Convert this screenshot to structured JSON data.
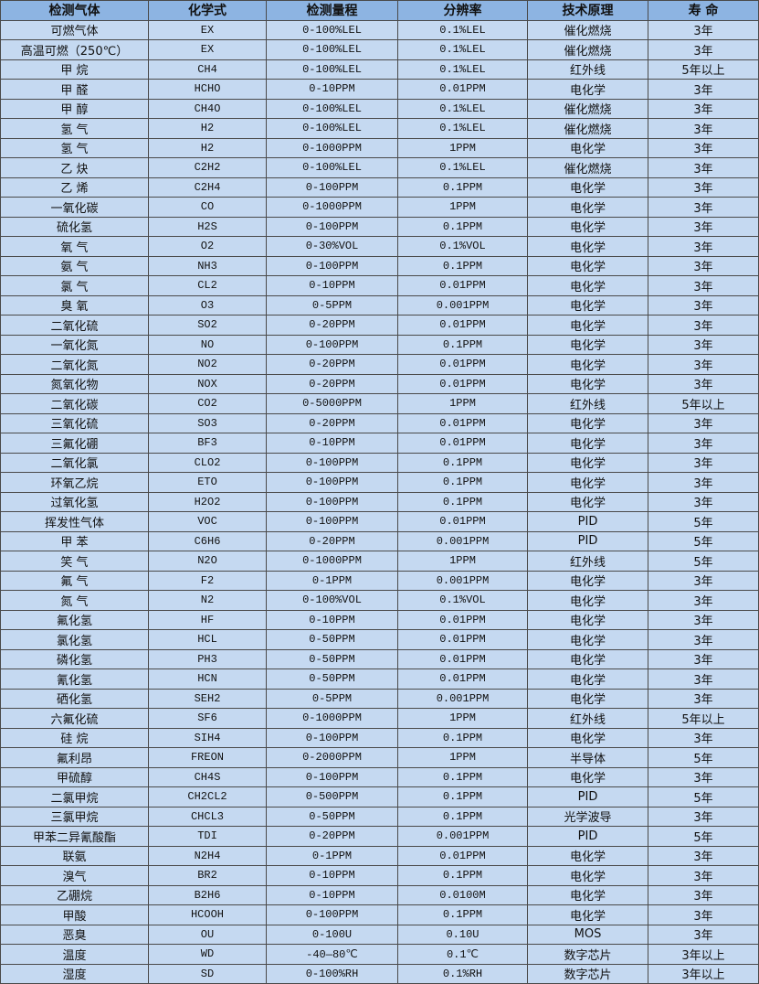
{
  "table": {
    "headers": [
      "检测气体",
      "化学式",
      "检测量程",
      "分辨率",
      "技术原理",
      "寿 命"
    ],
    "rows": [
      [
        "可燃气体",
        "EX",
        "0-100%LEL",
        "0.1%LEL",
        "催化燃烧",
        "3年"
      ],
      [
        "高温可燃（250℃）",
        "EX",
        "0-100%LEL",
        "0.1%LEL",
        "催化燃烧",
        "3年"
      ],
      [
        "甲 烷",
        "CH4",
        "0-100%LEL",
        "0.1%LEL",
        "红外线",
        "5年以上"
      ],
      [
        "甲 醛",
        "HCHO",
        "0-10PPM",
        "0.01PPM",
        "电化学",
        "3年"
      ],
      [
        "甲 醇",
        "CH4O",
        "0-100%LEL",
        "0.1%LEL",
        "催化燃烧",
        "3年"
      ],
      [
        "氢 气",
        "H2",
        "0-100%LEL",
        "0.1%LEL",
        "催化燃烧",
        "3年"
      ],
      [
        "氢 气",
        "H2",
        "0-1000PPM",
        "1PPM",
        "电化学",
        "3年"
      ],
      [
        "乙 炔",
        "C2H2",
        "0-100%LEL",
        "0.1%LEL",
        "催化燃烧",
        "3年"
      ],
      [
        "乙 烯",
        "C2H4",
        "0-100PPM",
        "0.1PPM",
        "电化学",
        "3年"
      ],
      [
        "一氧化碳",
        "CO",
        "0-1000PPM",
        "1PPM",
        "电化学",
        "3年"
      ],
      [
        "硫化氢",
        "H2S",
        "0-100PPM",
        "0.1PPM",
        "电化学",
        "3年"
      ],
      [
        "氧 气",
        "O2",
        "0-30%VOL",
        "0.1%VOL",
        "电化学",
        "3年"
      ],
      [
        "氨 气",
        "NH3",
        "0-100PPM",
        "0.1PPM",
        "电化学",
        "3年"
      ],
      [
        "氯 气",
        "CL2",
        "0-10PPM",
        "0.01PPM",
        "电化学",
        "3年"
      ],
      [
        "臭 氧",
        "O3",
        "0-5PPM",
        "0.001PPM",
        "电化学",
        "3年"
      ],
      [
        "二氧化硫",
        "SO2",
        "0-20PPM",
        "0.01PPM",
        "电化学",
        "3年"
      ],
      [
        "一氧化氮",
        "NO",
        "0-100PPM",
        "0.1PPM",
        "电化学",
        "3年"
      ],
      [
        "二氧化氮",
        "NO2",
        "0-20PPM",
        "0.01PPM",
        "电化学",
        "3年"
      ],
      [
        "氮氧化物",
        "NOX",
        "0-20PPM",
        "0.01PPM",
        "电化学",
        "3年"
      ],
      [
        "二氧化碳",
        "CO2",
        "0-5000PPM",
        "1PPM",
        "红外线",
        "5年以上"
      ],
      [
        "三氧化硫",
        "SO3",
        "0-20PPM",
        "0.01PPM",
        "电化学",
        "3年"
      ],
      [
        "三氟化硼",
        "BF3",
        "0-10PPM",
        "0.01PPM",
        "电化学",
        "3年"
      ],
      [
        "二氧化氯",
        "CLO2",
        "0-100PPM",
        "0.1PPM",
        "电化学",
        "3年"
      ],
      [
        "环氧乙烷",
        "ETO",
        "0-100PPM",
        "0.1PPM",
        "电化学",
        "3年"
      ],
      [
        "过氧化氢",
        "H2O2",
        "0-100PPM",
        "0.1PPM",
        "电化学",
        "3年"
      ],
      [
        "挥发性气体",
        "VOC",
        "0-100PPM",
        "0.01PPM",
        "PID",
        "5年"
      ],
      [
        "甲 苯",
        "C6H6",
        "0-20PPM",
        "0.001PPM",
        "PID",
        "5年"
      ],
      [
        "笑 气",
        "N2O",
        "0-1000PPM",
        "1PPM",
        "红外线",
        "5年"
      ],
      [
        "氟 气",
        "F2",
        "0-1PPM",
        "0.001PPM",
        "电化学",
        "3年"
      ],
      [
        "氮 气",
        "N2",
        "0-100%VOL",
        "0.1%VOL",
        "电化学",
        "3年"
      ],
      [
        "氟化氢",
        "HF",
        "0-10PPM",
        "0.01PPM",
        "电化学",
        "3年"
      ],
      [
        "氯化氢",
        "HCL",
        "0-50PPM",
        "0.01PPM",
        "电化学",
        "3年"
      ],
      [
        "磷化氢",
        "PH3",
        "0-50PPM",
        "0.01PPM",
        "电化学",
        "3年"
      ],
      [
        "氰化氢",
        "HCN",
        "0-50PPM",
        "0.01PPM",
        "电化学",
        "3年"
      ],
      [
        "硒化氢",
        "SEH2",
        "0-5PPM",
        "0.001PPM",
        "电化学",
        "3年"
      ],
      [
        "六氟化硫",
        "SF6",
        "0-1000PPM",
        "1PPM",
        "红外线",
        "5年以上"
      ],
      [
        "硅 烷",
        "SIH4",
        "0-100PPM",
        "0.1PPM",
        "电化学",
        "3年"
      ],
      [
        "氟利昂",
        "FREON",
        "0-2000PPM",
        "1PPM",
        "半导体",
        "5年"
      ],
      [
        "甲硫醇",
        "CH4S",
        "0-100PPM",
        "0.1PPM",
        "电化学",
        "3年"
      ],
      [
        "二氯甲烷",
        "CH2CL2",
        "0-500PPM",
        "0.1PPM",
        "PID",
        "5年"
      ],
      [
        "三氯甲烷",
        "CHCL3",
        "0-50PPM",
        "0.1PPM",
        "光学波导",
        "3年"
      ],
      [
        "甲苯二异氰酸酯",
        "TDI",
        "0-20PPM",
        "0.001PPM",
        "PID",
        "5年"
      ],
      [
        "联氨",
        "N2H4",
        "0-1PPM",
        "0.01PPM",
        "电化学",
        "3年"
      ],
      [
        "溴气",
        "BR2",
        "0-10PPM",
        "0.1PPM",
        "电化学",
        "3年"
      ],
      [
        "乙硼烷",
        "B2H6",
        "0-10PPM",
        "0.0100M",
        "电化学",
        "3年"
      ],
      [
        "甲酸",
        "HCOOH",
        "0-100PPM",
        "0.1PPM",
        "电化学",
        "3年"
      ],
      [
        "恶臭",
        "OU",
        "0-100U",
        "0.10U",
        "MOS",
        "3年"
      ],
      [
        "温度",
        "WD",
        "-40—80℃",
        "0.1℃",
        "数字芯片",
        "3年以上"
      ],
      [
        "湿度",
        "SD",
        "0-100%RH",
        "0.1%RH",
        "数字芯片",
        "3年以上"
      ]
    ]
  },
  "colors": {
    "header_bg": "#8db4e2",
    "row_bg": "#c5d9f1",
    "border": "#4a4a4a"
  }
}
